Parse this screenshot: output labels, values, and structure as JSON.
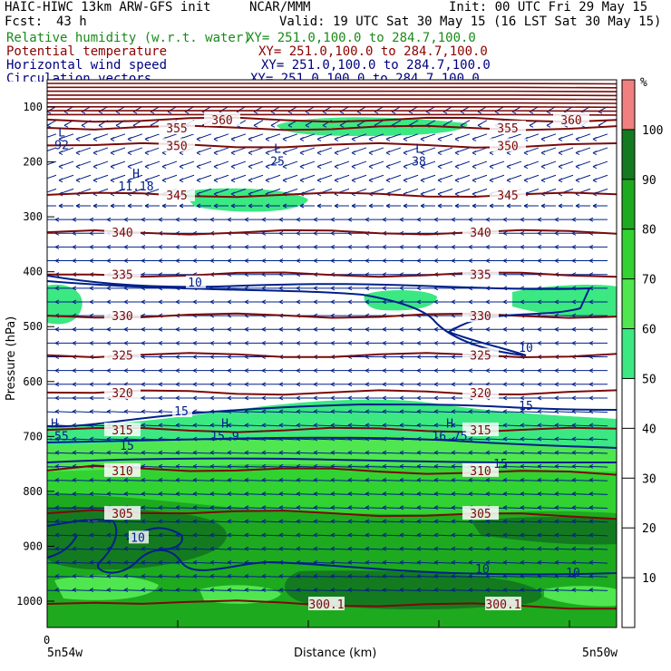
{
  "header": {
    "model_line": "HAIC-HIWC 13km ARW-GFS init",
    "center": "NCAR/MMM",
    "init": "Init: 00 UTC Fri 29 May 15",
    "fcst_label": "Fcst:",
    "fcst_value": "43 h",
    "valid": "Valid: 19 UTC Sat 30 May 15 (16 LST Sat 30 May 15)",
    "fields": [
      {
        "name": "Relative humidity (w.r.t. water)",
        "xy": "XY= 251.0,100.0 to 284.7,100.0",
        "color": "#1a8a1a"
      },
      {
        "name": "Potential temperature",
        "xy": "XY= 251.0,100.0 to 284.7,100.0",
        "color": "#8b0000"
      },
      {
        "name": "Horizontal wind speed",
        "xy": "XY= 251.0,100.0 to 284.7,100.0",
        "color": "#000080"
      },
      {
        "name": "Circulation vectors",
        "xy": "XY= 251.0,100.0 to 284.7,100.0",
        "color": "#000080"
      }
    ]
  },
  "chart_data": {
    "type": "cross-section",
    "xlabel": "Distance (km)",
    "ylabel": "Pressure (hPa)",
    "x_tick_start": "0",
    "x_left_label": "5n54w",
    "x_right_label": "5n50w",
    "y_ticks": [
      100,
      200,
      300,
      400,
      500,
      600,
      700,
      800,
      900,
      1000
    ],
    "colorbar": {
      "unit": "%",
      "ticks": [
        10,
        20,
        30,
        40,
        50,
        60,
        70,
        80,
        90,
        100
      ],
      "bins": [
        {
          "from": 0,
          "to": 50,
          "color": "#ffffff"
        },
        {
          "from": 50,
          "to": 60,
          "color": "#3ce882"
        },
        {
          "from": 60,
          "to": 70,
          "color": "#50e650"
        },
        {
          "from": 70,
          "to": 80,
          "color": "#32d232"
        },
        {
          "from": 80,
          "to": 90,
          "color": "#1eaa1e"
        },
        {
          "from": 90,
          "to": 100,
          "color": "#147a20"
        },
        {
          "from": 100,
          "to": 110,
          "color": "#f08080"
        }
      ]
    },
    "theta_contours": [
      {
        "value": 360,
        "label": "360",
        "p": 123
      },
      {
        "value": 355,
        "label": "355",
        "p": 138
      },
      {
        "value": 350,
        "label": "350",
        "p": 170
      },
      {
        "value": 345,
        "label": "345",
        "p": 260
      },
      {
        "value": 340,
        "label": "340",
        "p": 328
      },
      {
        "value": 335,
        "label": "335",
        "p": 405
      },
      {
        "value": 330,
        "label": "330",
        "p": 480
      },
      {
        "value": 325,
        "label": "325",
        "p": 552
      },
      {
        "value": 320,
        "label": "320",
        "p": 620
      },
      {
        "value": 315,
        "label": "315",
        "p": 688
      },
      {
        "value": 310,
        "label": "310",
        "p": 762
      },
      {
        "value": 305,
        "label": "305",
        "p": 840
      },
      {
        "value": 300,
        "label": "300.1",
        "p": 1005
      }
    ],
    "wind_labels": [
      {
        "text": "10",
        "p": 420
      },
      {
        "text": "15",
        "p": 655
      },
      {
        "text": "10",
        "p": 885
      }
    ],
    "extrema": [
      {
        "kind": "L",
        "value": "92",
        "p": 170
      },
      {
        "kind": "L",
        "value": "25",
        "p": 200
      },
      {
        "kind": "L",
        "value": "38",
        "p": 200
      },
      {
        "kind": "H",
        "value": "11.18",
        "p": 245
      },
      {
        "kind": "H",
        "value": "5.55",
        "p": 700
      },
      {
        "kind": "H",
        "value": "15.9",
        "p": 700
      },
      {
        "kind": "H",
        "value": "16.75",
        "p": 700
      }
    ]
  }
}
